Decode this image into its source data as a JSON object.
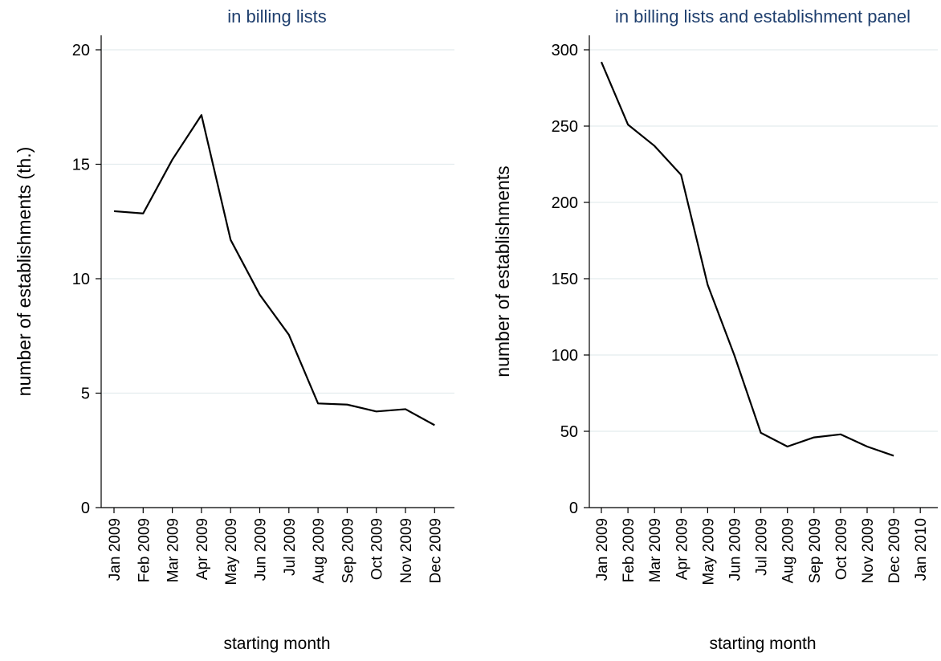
{
  "chart_data": [
    {
      "type": "line",
      "title": "in billing lists",
      "xlabel": "starting month",
      "ylabel": "number of establishments (th.)",
      "ylim": [
        0,
        20
      ],
      "yticks": [
        0,
        5,
        10,
        15,
        20
      ],
      "grid": true,
      "categories": [
        "Jan 2009",
        "Feb 2009",
        "Mar 2009",
        "Apr 2009",
        "May 2009",
        "Jun 2009",
        "Jul 2009",
        "Aug 2009",
        "Sep 2009",
        "Oct 2009",
        "Nov 2009",
        "Dec 2009"
      ],
      "series": [
        {
          "values": [
            12.95,
            12.85,
            15.2,
            17.15,
            11.7,
            9.3,
            7.55,
            4.55,
            4.5,
            4.2,
            4.3,
            3.6
          ]
        }
      ]
    },
    {
      "type": "line",
      "title": "in billing lists and establishment panel",
      "xlabel": "starting month",
      "ylabel": "number of establishments",
      "ylim": [
        0,
        300
      ],
      "yticks": [
        0,
        50,
        100,
        150,
        200,
        250,
        300
      ],
      "grid": true,
      "categories": [
        "Jan 2009",
        "Feb 2009",
        "Mar 2009",
        "Apr 2009",
        "May 2009",
        "Jun 2009",
        "Jul 2009",
        "Aug 2009",
        "Sep 2009",
        "Oct 2009",
        "Nov 2009",
        "Dec 2009",
        "Jan 2010"
      ],
      "series": [
        {
          "values": [
            292,
            251,
            237,
            218,
            146,
            100,
            49,
            40,
            46,
            48,
            40,
            34,
            null
          ]
        }
      ]
    }
  ]
}
